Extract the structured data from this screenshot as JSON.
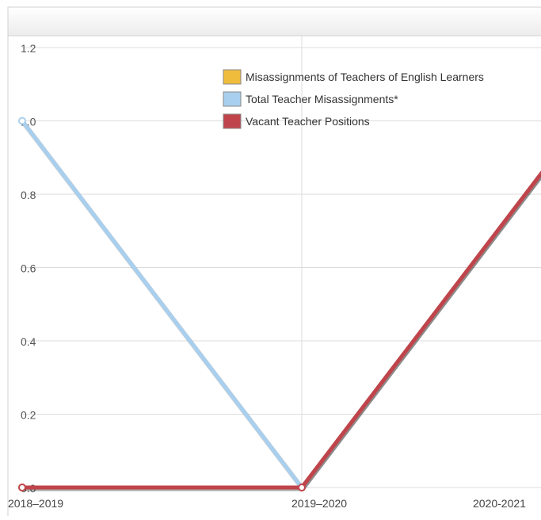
{
  "chart_data": {
    "type": "line",
    "title": "",
    "xlabel": "",
    "ylabel": "",
    "categories": [
      "2018–2019",
      "2019–2020",
      "2020-2021"
    ],
    "ylim": [
      0,
      1.2
    ],
    "yticks": [
      "0.0",
      "0.2",
      "0.4",
      "0.6",
      "0.8",
      "1.0",
      "1.2"
    ],
    "grid": true,
    "legend_position": "top-center",
    "series": [
      {
        "name": "Misassignments of Teachers of English Learners",
        "color": "#f0bc3c",
        "values": [
          0,
          0,
          1
        ]
      },
      {
        "name": "Total Teacher Misassignments*",
        "color": "#a9cfee",
        "values": [
          1,
          0,
          1
        ]
      },
      {
        "name": "Vacant Teacher Positions",
        "color": "#c0444b",
        "values": [
          0,
          0,
          1
        ]
      }
    ]
  }
}
